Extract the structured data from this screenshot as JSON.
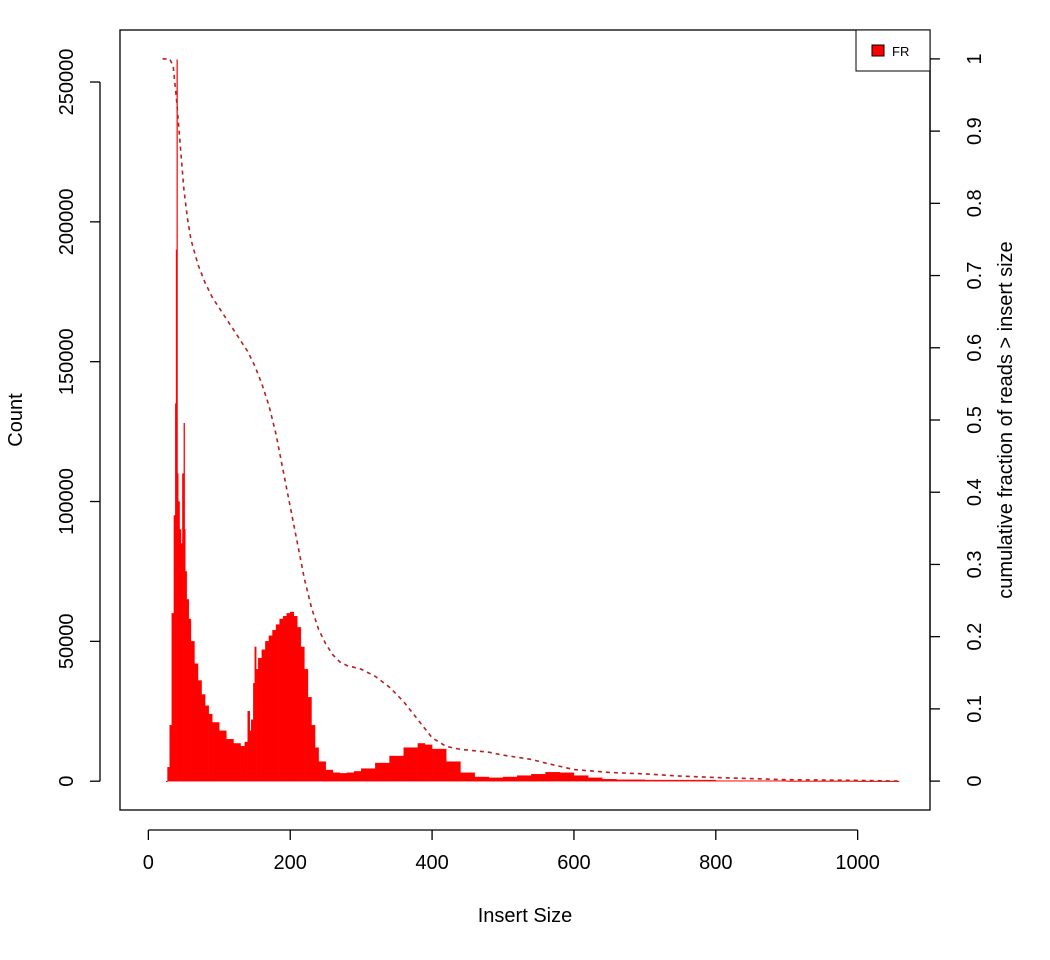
{
  "chart_data": {
    "type": "area",
    "title": "",
    "xlabel": "Insert Size",
    "ylabel": "Count",
    "y2label": "cumulative fraction of reads > insert size",
    "xlim": [
      -40,
      1102
    ],
    "ylim": [
      -10300,
      268600
    ],
    "y2lim": [
      -0.04,
      1.04
    ],
    "xticks": [
      0,
      200,
      400,
      600,
      800,
      1000
    ],
    "yticks": [
      0,
      50000,
      100000,
      150000,
      200000,
      250000
    ],
    "y2ticks": [
      0,
      0.1,
      0.2,
      0.3,
      0.4,
      0.5,
      0.6,
      0.7,
      0.8,
      0.9,
      1
    ],
    "xtick_labels": [
      "0",
      "200",
      "400",
      "600",
      "800",
      "1000"
    ],
    "ytick_labels": [
      "0",
      "50000",
      "100000",
      "150000",
      "200000",
      "250000"
    ],
    "y2tick_labels": [
      "0",
      "0.1",
      "0.2",
      "0.3",
      "0.4",
      "0.5",
      "0.6",
      "0.7",
      "0.8",
      "0.9",
      "1"
    ],
    "legend": {
      "position": "top-right",
      "entries": [
        {
          "label": "FR",
          "color": "#ff0000"
        }
      ]
    },
    "grid": false,
    "series": [
      {
        "name": "FR",
        "kind": "histogram",
        "color": "#ff0000",
        "x": [
          25,
          27,
          30,
          33,
          36,
          38,
          39,
          40,
          41,
          42,
          44,
          46,
          48,
          50,
          51,
          52,
          54,
          57,
          60,
          65,
          70,
          75,
          80,
          85,
          90,
          100,
          110,
          120,
          130,
          136,
          140,
          143,
          145,
          148,
          150,
          152,
          155,
          160,
          165,
          170,
          175,
          180,
          185,
          190,
          195,
          200,
          205,
          210,
          215,
          220,
          225,
          230,
          235,
          240,
          250,
          260,
          270,
          280,
          290,
          300,
          320,
          340,
          360,
          380,
          390,
          400,
          420,
          440,
          460,
          480,
          500,
          520,
          540,
          560,
          580,
          600,
          620,
          640,
          660,
          700,
          800,
          900,
          1000,
          1057
        ],
        "values": [
          0,
          5000,
          20000,
          60000,
          95000,
          135000,
          190000,
          258000,
          110000,
          100000,
          90000,
          85000,
          110000,
          128000,
          90000,
          75000,
          65000,
          58000,
          50000,
          42000,
          36000,
          31000,
          27000,
          24000,
          21000,
          18000,
          15000,
          13500,
          12500,
          14000,
          25000,
          18000,
          22000,
          35000,
          48000,
          40000,
          44000,
          47000,
          50000,
          52000,
          54000,
          56000,
          58000,
          59000,
          60000,
          60500,
          59000,
          55000,
          48000,
          40000,
          30000,
          20000,
          12000,
          7000,
          4000,
          3000,
          2800,
          3000,
          3500,
          4500,
          6500,
          9000,
          12000,
          13500,
          13000,
          11500,
          7000,
          3000,
          1500,
          1200,
          1500,
          2000,
          2500,
          3200,
          3000,
          2000,
          1200,
          700,
          500,
          400,
          200,
          100,
          50,
          20
        ]
      },
      {
        "name": "cumulative fraction of reads > insert size",
        "kind": "line",
        "axis": "right",
        "color": "#b22222",
        "x": [
          20,
          30,
          35,
          40,
          45,
          50,
          55,
          60,
          70,
          80,
          90,
          100,
          110,
          120,
          130,
          140,
          150,
          160,
          170,
          180,
          190,
          200,
          210,
          220,
          230,
          240,
          250,
          260,
          270,
          280,
          300,
          320,
          340,
          360,
          380,
          400,
          420,
          440,
          460,
          480,
          500,
          540,
          560,
          600,
          650,
          700,
          750,
          800,
          900,
          1000,
          1057
        ],
        "values": [
          1.0,
          1.0,
          0.99,
          0.94,
          0.88,
          0.82,
          0.78,
          0.75,
          0.715,
          0.69,
          0.67,
          0.655,
          0.64,
          0.625,
          0.61,
          0.595,
          0.575,
          0.55,
          0.52,
          0.48,
          0.43,
          0.38,
          0.33,
          0.28,
          0.24,
          0.21,
          0.19,
          0.175,
          0.165,
          0.16,
          0.155,
          0.145,
          0.13,
          0.11,
          0.085,
          0.06,
          0.048,
          0.044,
          0.042,
          0.04,
          0.036,
          0.03,
          0.025,
          0.016,
          0.012,
          0.01,
          0.007,
          0.005,
          0.002,
          0.001,
          0.0
        ]
      }
    ]
  }
}
